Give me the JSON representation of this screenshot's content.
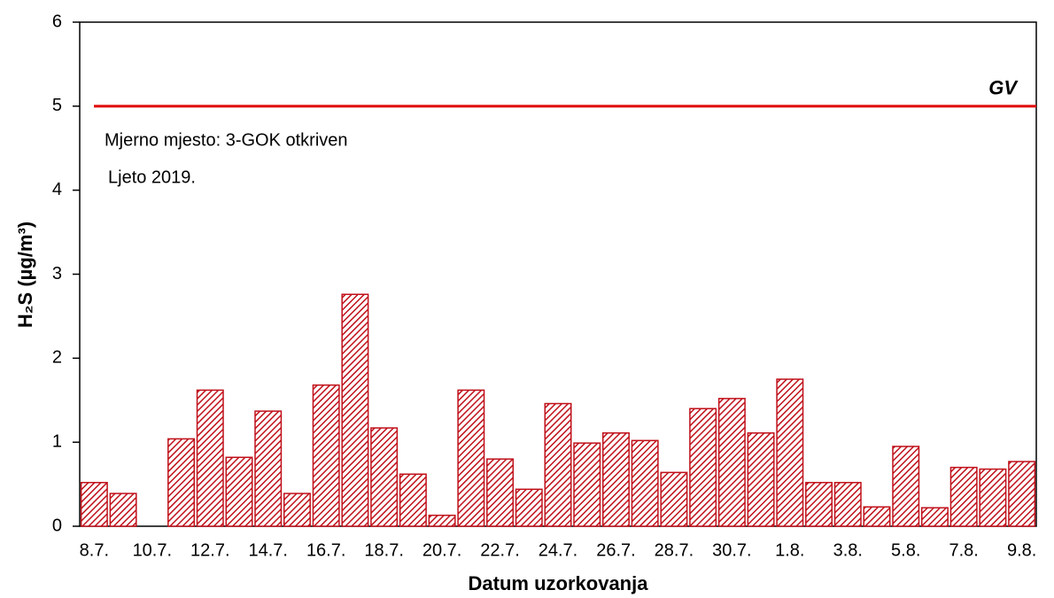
{
  "chart_data": {
    "type": "bar",
    "x_label": "Datum uzorkovanja",
    "y_label": "H₂S (µg/m³)",
    "annotations": [
      "Mjerno mjesto: 3-GOK otkriven",
      "Ljeto 2019."
    ],
    "reference_line": {
      "value": 5,
      "label": "GV",
      "color": "#e00000"
    },
    "categories": [
      "8.7.",
      null,
      "10.7.",
      null,
      "12.7.",
      null,
      "14.7.",
      null,
      "16.7.",
      null,
      "18.7.",
      null,
      "20.7.",
      null,
      "22.7.",
      null,
      "24.7.",
      null,
      "26.7.",
      null,
      "28.7.",
      null,
      "30.7.",
      null,
      "1.8.",
      null,
      "3.8.",
      null,
      "5.8.",
      null,
      "7.8.",
      null,
      "9.8."
    ],
    "values": [
      0.52,
      0.39,
      0,
      1.04,
      1.62,
      0.82,
      1.37,
      0.39,
      1.68,
      2.76,
      1.17,
      0.62,
      0.13,
      1.62,
      0.8,
      0.44,
      1.46,
      0.99,
      1.11,
      1.02,
      0.64,
      1.4,
      1.52,
      1.11,
      1.75,
      0.52,
      0.52,
      0.23,
      0.95,
      0.22,
      0.7,
      0.68,
      0.77
    ],
    "color": "#c0101a",
    "ylim": [
      0,
      6
    ],
    "yticks": [
      0,
      1,
      2,
      3,
      4,
      5,
      6
    ],
    "grid": false
  }
}
